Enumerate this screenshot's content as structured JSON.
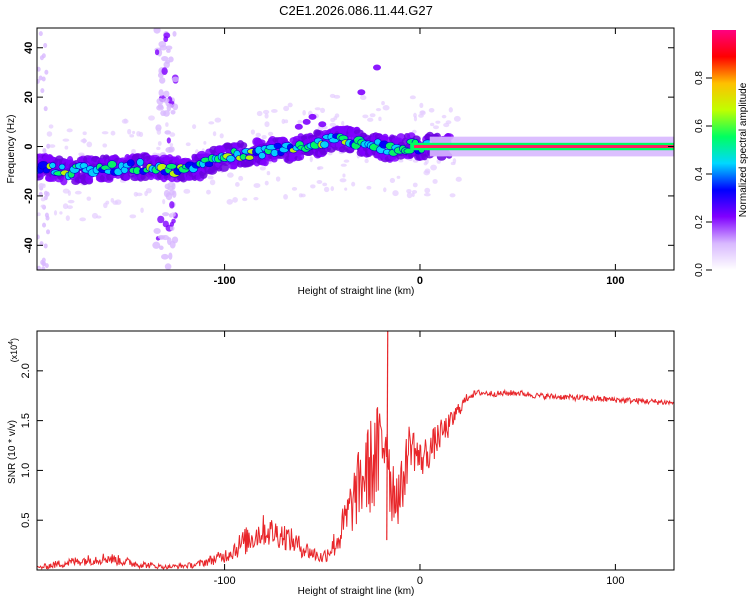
{
  "title": "C2E1.2026.086.11.44.G27",
  "chart_data": [
    {
      "type": "heatmap",
      "xlabel": "Height of straight line (km)",
      "ylabel": "Frequency (Hz)",
      "xlim": [
        -196,
        130
      ],
      "ylim": [
        -50,
        48
      ],
      "xticks": [
        -100,
        0,
        100
      ],
      "xtick_labels": [
        "-100",
        "0",
        "100"
      ],
      "yticks": [
        -40,
        -20,
        0,
        20,
        40
      ],
      "ytick_labels": [
        "-40",
        "-20",
        "0",
        "20",
        "40"
      ],
      "track": {
        "x": [
          -196,
          -180,
          -160,
          -140,
          -120,
          -100,
          -80,
          -60,
          -40,
          -25,
          -15,
          -5,
          0,
          20,
          60,
          100,
          130
        ],
        "freq": [
          -8,
          -10,
          -9,
          -8,
          -10,
          -4,
          -2,
          0,
          3,
          1,
          -1,
          0,
          0,
          0,
          0,
          0,
          0
        ]
      },
      "interference_band_x": [
        -135,
        -125
      ],
      "colorbar": {
        "label": "Normalized spectral amplitude",
        "ticks": [
          0.0,
          0.2,
          0.4,
          0.6,
          0.8
        ],
        "tick_labels": [
          "0.0",
          "0.2",
          "0.4",
          "0.6",
          "0.8"
        ],
        "range": [
          0,
          1
        ],
        "colors": [
          "#ffffff",
          "#d8b8ff",
          "#8000ff",
          "#0000ff",
          "#00d8ff",
          "#00ff60",
          "#c0ff00",
          "#ffc000",
          "#ff0000",
          "#ff0080"
        ]
      }
    },
    {
      "type": "line",
      "xlabel": "Height of straight line (km)",
      "ylabel": "SNR (10 * v/v)",
      "scale_label_prefix": "(x10",
      "scale_label_exp": "4",
      "scale_label_suffix": ")",
      "xlim": [
        -196,
        130
      ],
      "ylim": [
        0,
        2.4
      ],
      "xticks": [
        -100,
        0,
        100
      ],
      "xtick_labels": [
        "-100",
        "0",
        "100"
      ],
      "yticks": [
        0.5,
        1.0,
        1.5,
        2.0
      ],
      "ytick_labels": [
        "0.5",
        "1.0",
        "1.5",
        "2.0"
      ],
      "series": [
        {
          "name": "SNR",
          "color": "#e8262a",
          "x": [
            -196,
            -185,
            -175,
            -160,
            -145,
            -130,
            -115,
            -100,
            -90,
            -80,
            -70,
            -60,
            -50,
            -42,
            -35,
            -30,
            -25,
            -20,
            -17,
            -15,
            -10,
            -5,
            0,
            5,
            10,
            15,
            20,
            25,
            30,
            40,
            50,
            60,
            70,
            80,
            90,
            100,
            110,
            120,
            130
          ],
          "y": [
            0.02,
            0.06,
            0.09,
            0.12,
            0.06,
            0.03,
            0.05,
            0.14,
            0.28,
            0.4,
            0.35,
            0.22,
            0.12,
            0.3,
            0.65,
            0.9,
            1.05,
            1.15,
            1.5,
            0.85,
            0.75,
            1.3,
            1.1,
            1.2,
            1.35,
            1.45,
            1.62,
            1.75,
            1.78,
            1.77,
            1.78,
            1.75,
            1.74,
            1.73,
            1.72,
            1.71,
            1.7,
            1.69,
            1.68
          ],
          "noise": [
            0.02,
            0.04,
            0.05,
            0.06,
            0.04,
            0.02,
            0.03,
            0.07,
            0.14,
            0.16,
            0.14,
            0.1,
            0.06,
            0.16,
            0.3,
            0.4,
            0.5,
            0.6,
            0.65,
            0.4,
            0.3,
            0.25,
            0.2,
            0.18,
            0.15,
            0.12,
            0.08,
            0.04,
            0.03,
            0.03,
            0.03,
            0.03,
            0.03,
            0.03,
            0.03,
            0.03,
            0.03,
            0.03,
            0.03
          ]
        }
      ]
    }
  ]
}
